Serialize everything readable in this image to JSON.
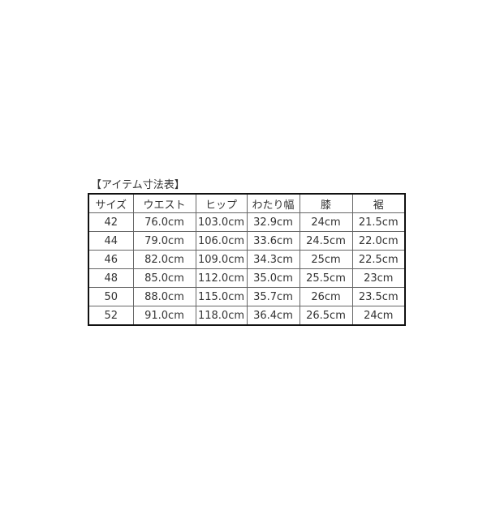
{
  "title": "【アイテム寸法表】",
  "table": {
    "headers": [
      "サイズ",
      "ウエスト",
      "ヒップ",
      "わたり幅",
      "膝",
      "裾"
    ],
    "rows": [
      [
        "42",
        "76.0cm",
        "103.0cm",
        "32.9cm",
        "24cm",
        "21.5cm"
      ],
      [
        "44",
        "79.0cm",
        "106.0cm",
        "33.6cm",
        "24.5cm",
        "22.0cm"
      ],
      [
        "46",
        "82.0cm",
        "109.0cm",
        "34.3cm",
        "25cm",
        "22.5cm"
      ],
      [
        "48",
        "85.0cm",
        "112.0cm",
        "35.0cm",
        "25.5cm",
        "23cm"
      ],
      [
        "50",
        "88.0cm",
        "115.0cm",
        "35.7cm",
        "26cm",
        "23.5cm"
      ],
      [
        "52",
        "91.0cm",
        "118.0cm",
        "36.4cm",
        "26.5cm",
        "24cm"
      ]
    ]
  }
}
